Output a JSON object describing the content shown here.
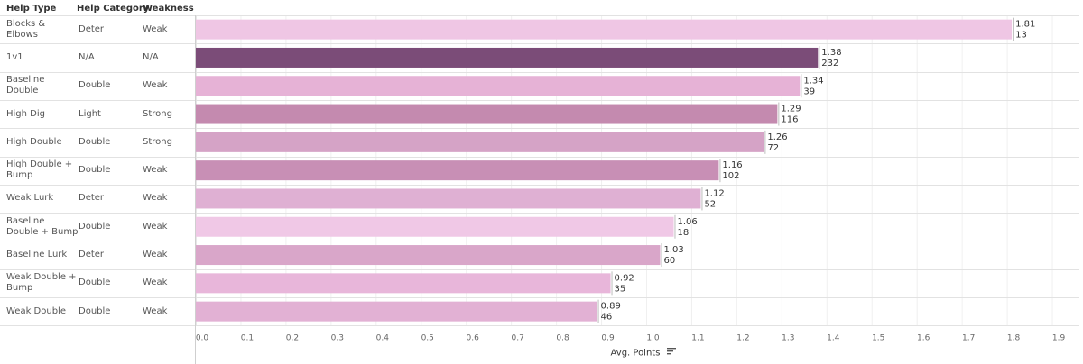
{
  "table": {
    "headers": {
      "help_type": "Help Type",
      "help_category": "Help Category",
      "weakness": "Weakness"
    },
    "rows": [
      {
        "help_type": "Blocks & Elbows",
        "help_category": "Deter",
        "weakness": "Weak"
      },
      {
        "help_type": "1v1",
        "help_category": "N/A",
        "weakness": "N/A"
      },
      {
        "help_type": "Baseline Double",
        "help_category": "Double",
        "weakness": "Weak"
      },
      {
        "help_type": "High Dig",
        "help_category": "Light",
        "weakness": "Strong"
      },
      {
        "help_type": "High Double",
        "help_category": "Double",
        "weakness": "Strong"
      },
      {
        "help_type": "High Double + Bump",
        "help_category": "Double",
        "weakness": "Weak"
      },
      {
        "help_type": "Weak Lurk",
        "help_category": "Deter",
        "weakness": "Weak"
      },
      {
        "help_type": "Baseline Double + Bump",
        "help_category": "Double",
        "weakness": "Weak"
      },
      {
        "help_type": "Baseline Lurk",
        "help_category": "Deter",
        "weakness": "Weak"
      },
      {
        "help_type": "Weak Double + Bump",
        "help_category": "Double",
        "weakness": "Weak"
      },
      {
        "help_type": "Weak Double",
        "help_category": "Double",
        "weakness": "Weak"
      }
    ]
  },
  "chart_data": {
    "type": "bar",
    "orientation": "horizontal",
    "categories": [
      "Blocks & Elbows",
      "1v1",
      "Baseline Double",
      "High Dig",
      "High Double",
      "High Double + Bump",
      "Weak Lurk",
      "Baseline Double + Bump",
      "Baseline Lurk",
      "Weak Double + Bump",
      "Weak Double"
    ],
    "values": [
      1.81,
      1.38,
      1.34,
      1.29,
      1.26,
      1.16,
      1.12,
      1.06,
      1.03,
      0.92,
      0.89
    ],
    "counts": [
      13,
      232,
      39,
      116,
      72,
      102,
      52,
      18,
      60,
      35,
      46
    ],
    "value_labels": [
      "1.81",
      "1.38",
      "1.34",
      "1.29",
      "1.26",
      "1.16",
      "1.12",
      "1.06",
      "1.03",
      "0.92",
      "0.89"
    ],
    "count_labels": [
      "13",
      "232",
      "39",
      "116",
      "72",
      "102",
      "52",
      "18",
      "60",
      "35",
      "46"
    ],
    "colors": [
      "#efc6e4",
      "#7b4c78",
      "#e6b2d6",
      "#c48aaf",
      "#d5a3c6",
      "#c88fb5",
      "#dfb0d3",
      "#f0c8e6",
      "#d9a6c9",
      "#e8b6da",
      "#e2b1d4"
    ],
    "xlabel": "Avg. Points",
    "xlim": [
      0,
      1.9
    ],
    "ticks": [
      0,
      0.1,
      0.2,
      0.3,
      0.4,
      0.5,
      0.6,
      0.7,
      0.8,
      0.9,
      1.0,
      1.1,
      1.2,
      1.3,
      1.4,
      1.5,
      1.6,
      1.7,
      1.8,
      1.9
    ],
    "tick_labels": [
      "0.0",
      "0.1",
      "0.2",
      "0.3",
      "0.4",
      "0.5",
      "0.6",
      "0.7",
      "0.8",
      "0.9",
      "1.0",
      "1.1",
      "1.2",
      "1.3",
      "1.4",
      "1.5",
      "1.6",
      "1.7",
      "1.8",
      "1.9"
    ],
    "grid": true,
    "legend": "none"
  },
  "sort_icon": "sort-descending-icon"
}
